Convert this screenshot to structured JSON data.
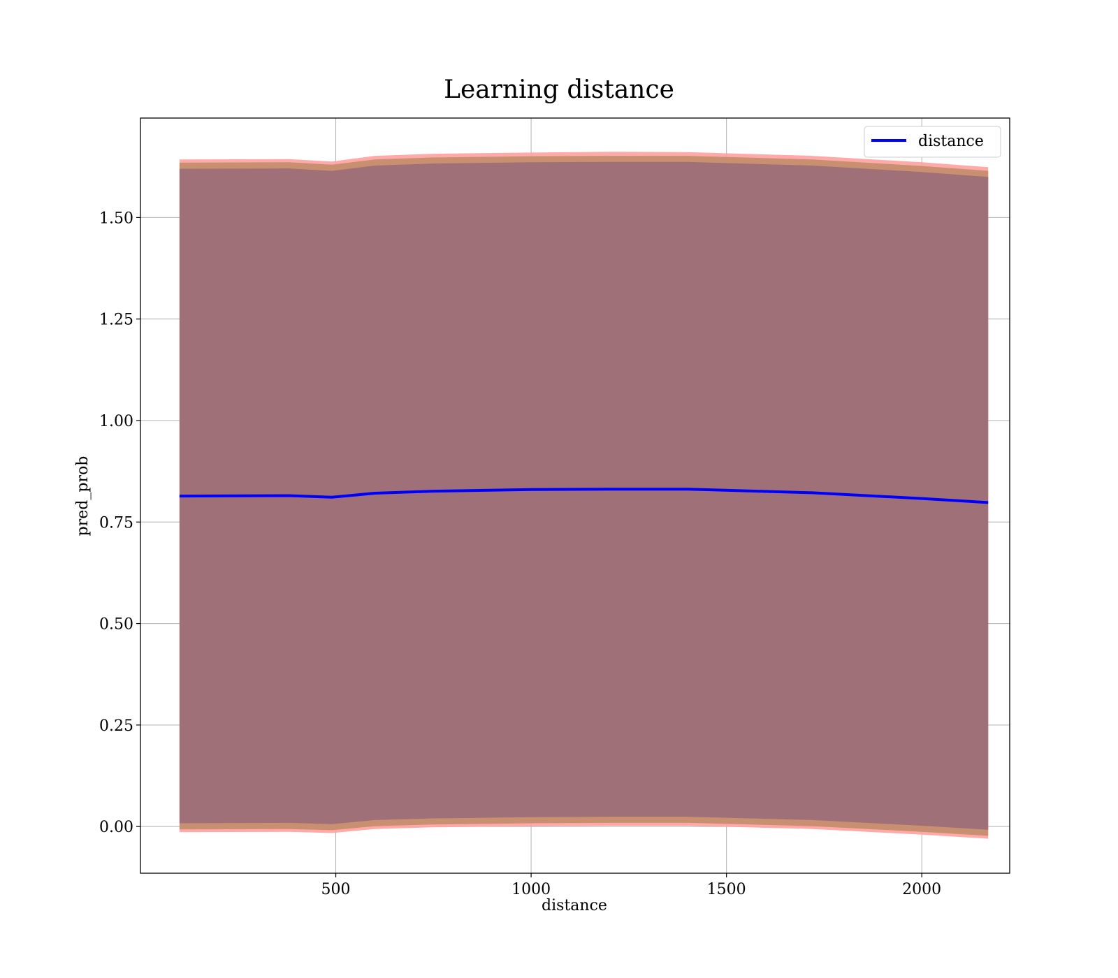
{
  "chart_data": {
    "type": "line",
    "title": "Learning distance",
    "xlabel": "distance",
    "ylabel": "pred_prob",
    "xlim": [
      0,
      2225
    ],
    "ylim": [
      -0.115,
      1.745
    ],
    "x_ticks": [
      500,
      1000,
      1500,
      2000
    ],
    "x_tick_labels": [
      "500",
      "1000",
      "1500",
      "2000"
    ],
    "y_ticks": [
      0.0,
      0.25,
      0.5,
      0.75,
      1.0,
      1.25,
      1.5
    ],
    "y_tick_labels": [
      "0.00",
      "0.25",
      "0.50",
      "0.75",
      "1.00",
      "1.25",
      "1.50"
    ],
    "grid": true,
    "legend": {
      "position": "top-right",
      "entries": [
        "distance"
      ]
    },
    "colors": {
      "line": "#0000ff",
      "band_outer": "#ffa0a0",
      "band_middle": "#c89070",
      "band_inner": "#a07078"
    },
    "x": [
      100,
      380,
      490,
      600,
      750,
      1000,
      1200,
      1400,
      1720,
      2000,
      2170
    ],
    "series": [
      {
        "name": "distance",
        "values": [
          0.814,
          0.815,
          0.811,
          0.821,
          0.826,
          0.83,
          0.831,
          0.831,
          0.822,
          0.808,
          0.798
        ]
      }
    ],
    "bands": [
      {
        "upper": [
          1.643,
          1.644,
          1.638,
          1.652,
          1.657,
          1.66,
          1.662,
          1.661,
          1.652,
          1.636,
          1.624
        ],
        "lower": [
          -0.014,
          -0.013,
          -0.016,
          -0.006,
          -0.002,
          0.001,
          0.002,
          0.002,
          -0.006,
          -0.02,
          -0.03
        ]
      },
      {
        "upper": [
          1.635,
          1.636,
          1.63,
          1.643,
          1.648,
          1.651,
          1.652,
          1.652,
          1.643,
          1.627,
          1.615
        ],
        "lower": [
          -0.007,
          -0.006,
          -0.009,
          0.001,
          0.005,
          0.008,
          0.009,
          0.009,
          0.001,
          -0.013,
          -0.023
        ]
      },
      {
        "upper": [
          1.62,
          1.621,
          1.615,
          1.628,
          1.633,
          1.636,
          1.637,
          1.637,
          1.628,
          1.612,
          1.6
        ],
        "lower": [
          0.008,
          0.009,
          0.006,
          0.016,
          0.02,
          0.023,
          0.024,
          0.024,
          0.016,
          0.002,
          -0.008
        ]
      }
    ]
  }
}
